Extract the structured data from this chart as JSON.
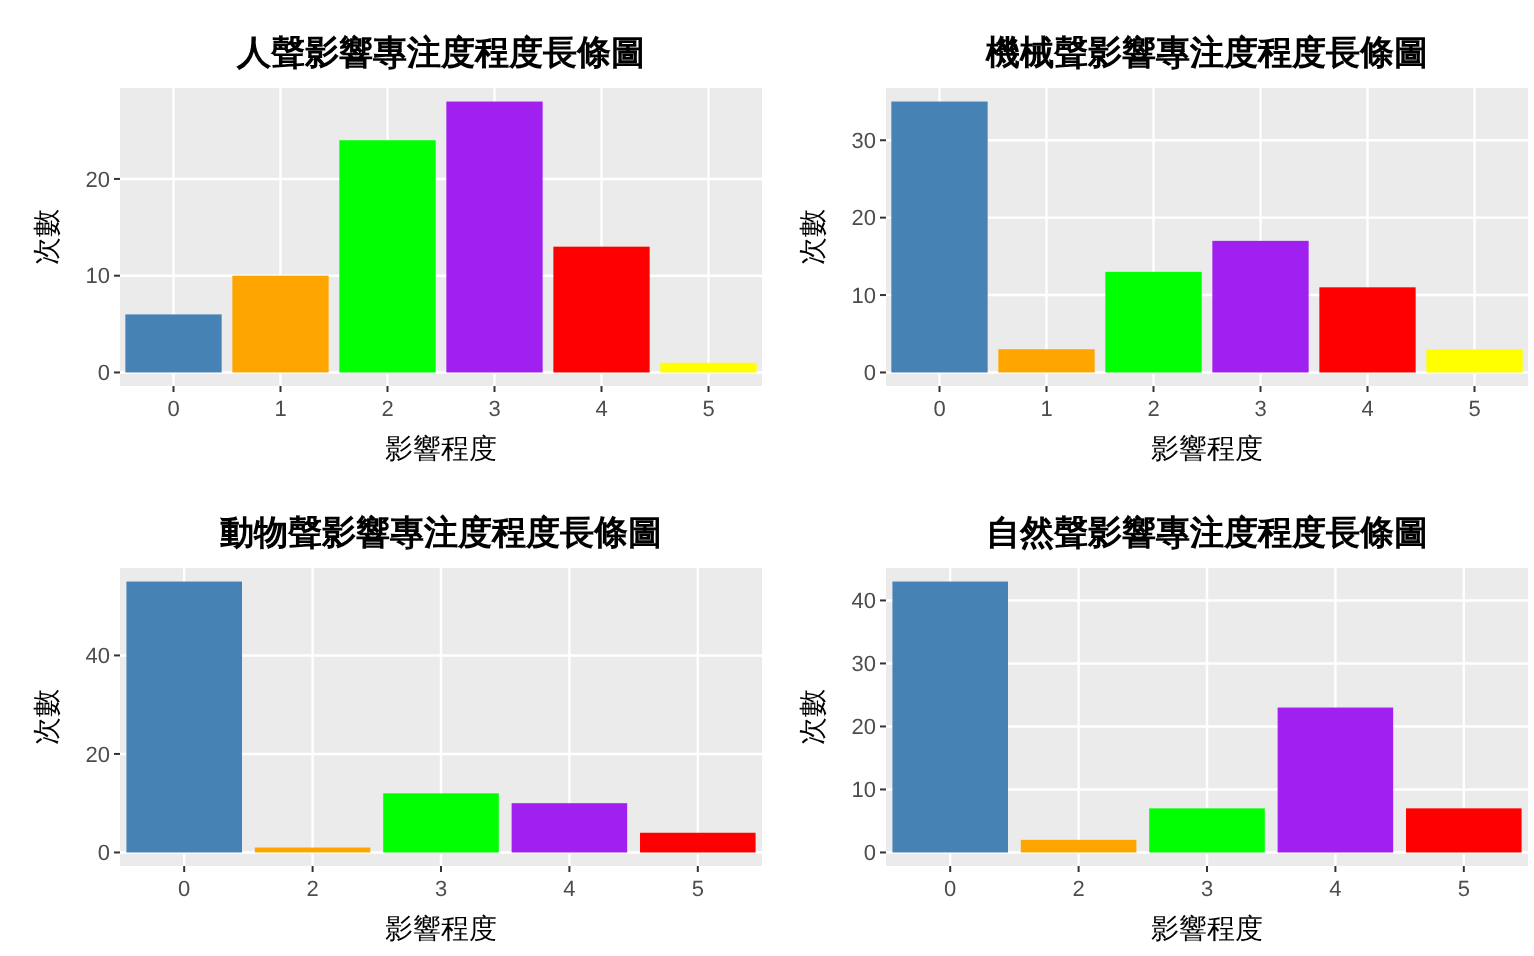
{
  "chart_data": [
    {
      "type": "bar",
      "title": "人聲影響專注度程度長條圖",
      "xlabel": "影響程度",
      "ylabel": "次數",
      "categories": [
        "0",
        "1",
        "2",
        "3",
        "4",
        "5"
      ],
      "values": [
        6,
        10,
        24,
        28,
        13,
        1
      ],
      "colors": [
        "#4682b4",
        "#ffa500",
        "#00ff00",
        "#a020f0",
        "#ff0000",
        "#ffff00"
      ],
      "ylim": [
        -1.4,
        29.4
      ],
      "yticks": [
        0,
        10,
        20
      ],
      "grid": true
    },
    {
      "type": "bar",
      "title": "機械聲影響專注度程度長條圖",
      "xlabel": "影響程度",
      "ylabel": "次數",
      "categories": [
        "0",
        "1",
        "2",
        "3",
        "4",
        "5"
      ],
      "values": [
        35,
        3,
        13,
        17,
        11,
        3
      ],
      "colors": [
        "#4682b4",
        "#ffa500",
        "#00ff00",
        "#a020f0",
        "#ff0000",
        "#ffff00"
      ],
      "ylim": [
        -1.75,
        36.75
      ],
      "yticks": [
        0,
        10,
        20,
        30
      ],
      "grid": true
    },
    {
      "type": "bar",
      "title": "動物聲影響專注度程度長條圖",
      "xlabel": "影響程度",
      "ylabel": "次數",
      "categories": [
        "0",
        "2",
        "3",
        "4",
        "5"
      ],
      "values": [
        55,
        1,
        12,
        10,
        4
      ],
      "colors": [
        "#4682b4",
        "#ffa500",
        "#00ff00",
        "#a020f0",
        "#ff0000"
      ],
      "ylim": [
        -2.75,
        57.75
      ],
      "yticks": [
        0,
        20,
        40
      ],
      "grid": true
    },
    {
      "type": "bar",
      "title": "自然聲影響專注度程度長條圖",
      "xlabel": "影響程度",
      "ylabel": "次數",
      "categories": [
        "0",
        "2",
        "3",
        "4",
        "5"
      ],
      "values": [
        43,
        2,
        7,
        23,
        7
      ],
      "colors": [
        "#4682b4",
        "#ffa500",
        "#00ff00",
        "#a020f0",
        "#ff0000"
      ],
      "ylim": [
        -2.15,
        45.15
      ],
      "yticks": [
        0,
        10,
        20,
        30,
        40
      ],
      "grid": true
    }
  ]
}
